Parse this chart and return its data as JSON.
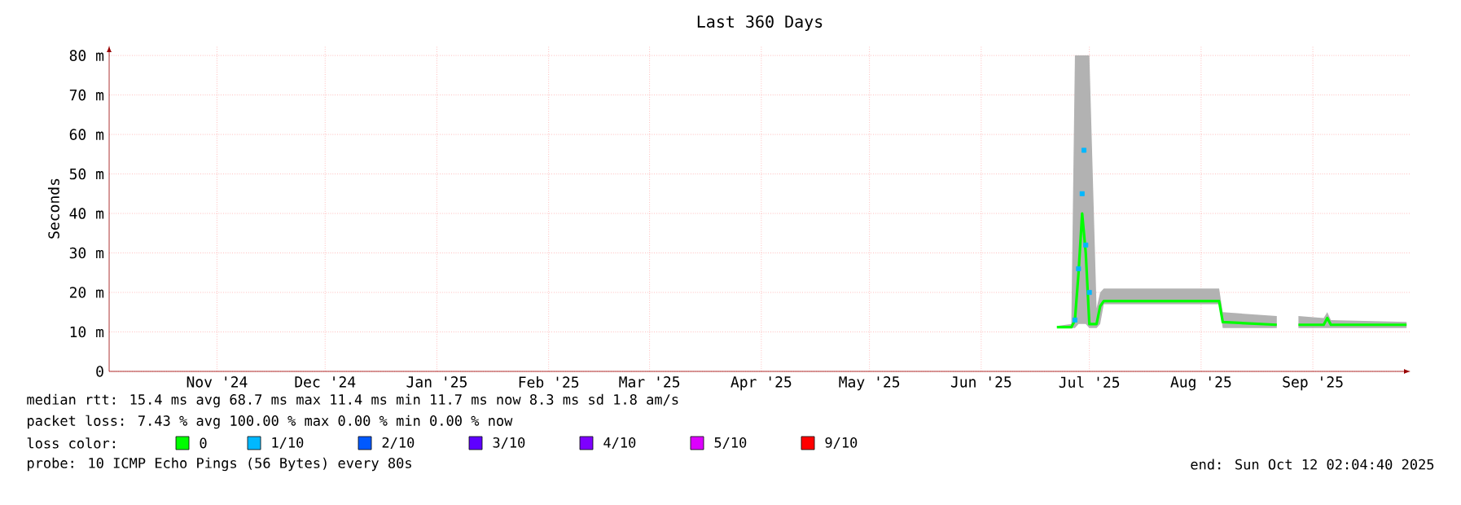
{
  "chart_data": {
    "type": "line",
    "title": "Last 360 Days",
    "ylabel": "Seconds",
    "xlim": [
      "2024-10-16T02:04",
      "2025-10-12T02:04"
    ],
    "xticks": [
      {
        "value": "2024-11-15",
        "label": "Nov '24"
      },
      {
        "value": "2024-12-15",
        "label": "Dec '24"
      },
      {
        "value": "2025-01-15",
        "label": "Jan '25"
      },
      {
        "value": "2025-02-15",
        "label": "Feb '25"
      },
      {
        "value": "2025-03-15",
        "label": "Mar '25"
      },
      {
        "value": "2025-04-15",
        "label": "Apr '25"
      },
      {
        "value": "2025-05-15",
        "label": "May '25"
      },
      {
        "value": "2025-06-15",
        "label": "Jun '25"
      },
      {
        "value": "2025-07-15",
        "label": "Jul '25"
      },
      {
        "value": "2025-08-15",
        "label": "Aug '25"
      },
      {
        "value": "2025-09-15",
        "label": "Sep '25"
      }
    ],
    "ylim": [
      0,
      82.5
    ],
    "yticks": [
      0,
      {
        "value": 10,
        "label": "10 m"
      },
      {
        "value": 20,
        "label": "20 m"
      },
      {
        "value": 30,
        "label": "30 m"
      },
      {
        "value": 40,
        "label": "40 m"
      },
      {
        "value": 50,
        "label": "50 m"
      },
      {
        "value": 60,
        "label": "60 m"
      },
      {
        "value": 70,
        "label": "70 m"
      },
      {
        "value": 80,
        "label": "80 m"
      }
    ],
    "grid": true,
    "legend": "bottom",
    "legend_title": "loss color:",
    "series": [
      {
        "name": "0",
        "color": "#00ff00",
        "x": [
          "2025-07-06",
          "2025-07-10",
          "2025-07-11",
          "2025-07-12",
          "2025-07-13",
          "2025-07-14",
          "2025-07-15",
          "2025-07-17",
          "2025-07-18",
          "2025-07-19",
          "2025-08-20",
          "2025-08-21",
          "2025-09-05",
          "2025-09-06",
          "2025-09-11",
          "2025-09-18",
          "2025-09-19",
          "2025-09-20",
          "2025-10-11"
        ],
        "values": [
          11.2,
          11.2,
          13,
          25,
          40,
          30,
          12,
          12,
          16.5,
          17.8,
          17.8,
          12.5,
          11.8,
          null,
          11.8,
          11.8,
          13.5,
          11.8,
          11.8
        ],
        "lower": [
          11,
          11,
          11,
          12,
          12,
          12,
          11,
          11,
          12,
          17,
          17,
          11,
          11,
          null,
          11,
          11,
          11,
          11,
          11
        ],
        "upper": [
          11.5,
          12,
          80,
          80,
          80,
          80,
          80,
          16,
          20,
          21,
          21,
          15,
          14,
          null,
          14,
          13.5,
          15,
          13,
          12.5
        ]
      },
      {
        "name": "1/10",
        "color": "#00b8ff",
        "type": "scatter",
        "marker": "square",
        "x": [
          "2025-07-11",
          "2025-07-12",
          "2025-07-13",
          "2025-07-13T12:00",
          "2025-07-14",
          "2025-07-15"
        ],
        "values": [
          13,
          26,
          45,
          56,
          32,
          20
        ]
      },
      {
        "name": "2/10",
        "color": "#0059ff",
        "type": "scatter"
      },
      {
        "name": "3/10",
        "color": "#5e00ff",
        "type": "scatter"
      },
      {
        "name": "4/10",
        "color": "#7e00ff",
        "type": "scatter"
      },
      {
        "name": "5/10",
        "color": "#dd00ff",
        "type": "scatter"
      },
      {
        "name": "9/10",
        "color": "#ff0000",
        "type": "scatter"
      }
    ],
    "annotations": [
      "median rtt:  15.4 ms avg  68.7 ms max  11.4 ms min  11.7 ms now  8.3 ms sd  1.8   am/s",
      "packet loss: 7.43 % avg  100.00 % max  0.00 % min  0.00 % now",
      "probe:       10 ICMP Echo Pings (56 Bytes) every 80s",
      "end: Sun Oct 12 02:04:40 2025"
    ]
  }
}
